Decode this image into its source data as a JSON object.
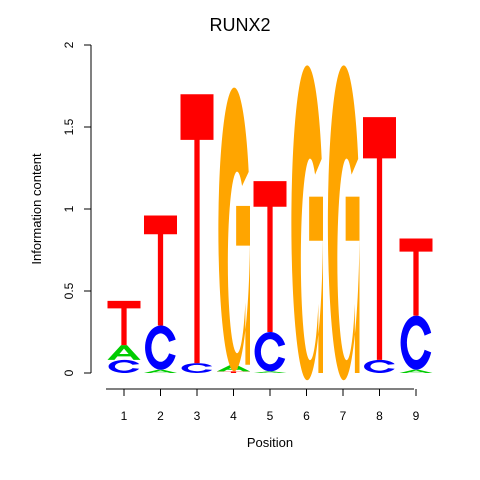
{
  "chart_data": {
    "type": "sequence-logo",
    "title": "RUNX2",
    "xlabel": "Position",
    "ylabel": "Information content",
    "ylim": [
      0,
      2
    ],
    "yticks": [
      "0",
      "0.5",
      "1",
      "1.5",
      "2"
    ],
    "positions": [
      "1",
      "2",
      "3",
      "4",
      "5",
      "6",
      "7",
      "8",
      "9"
    ],
    "colors": {
      "A": "#00cc00",
      "C": "#0000ff",
      "G": "#ffa500",
      "T": "#ff0000"
    },
    "stacks": [
      [
        {
          "letter": "C",
          "height": 0.08
        },
        {
          "letter": "A",
          "height": 0.09
        },
        {
          "letter": "T",
          "height": 0.27
        }
      ],
      [
        {
          "letter": "A",
          "height": 0.02
        },
        {
          "letter": "C",
          "height": 0.27
        },
        {
          "letter": "T",
          "height": 0.67
        }
      ],
      [
        {
          "letter": "C",
          "height": 0.06
        },
        {
          "letter": "T",
          "height": 1.64
        }
      ],
      [
        {
          "letter": "T",
          "height": 0.01
        },
        {
          "letter": "A",
          "height": 0.04
        },
        {
          "letter": "G",
          "height": 1.73
        }
      ],
      [
        {
          "letter": "A",
          "height": 0.01
        },
        {
          "letter": "C",
          "height": 0.24
        },
        {
          "letter": "T",
          "height": 0.92
        }
      ],
      [
        {
          "letter": "G",
          "height": 1.92
        }
      ],
      [
        {
          "letter": "G",
          "height": 1.92
        }
      ],
      [
        {
          "letter": "C",
          "height": 0.08
        },
        {
          "letter": "T",
          "height": 1.48
        }
      ],
      [
        {
          "letter": "A",
          "height": 0.02
        },
        {
          "letter": "C",
          "height": 0.33
        },
        {
          "letter": "T",
          "height": 0.47
        }
      ]
    ]
  }
}
